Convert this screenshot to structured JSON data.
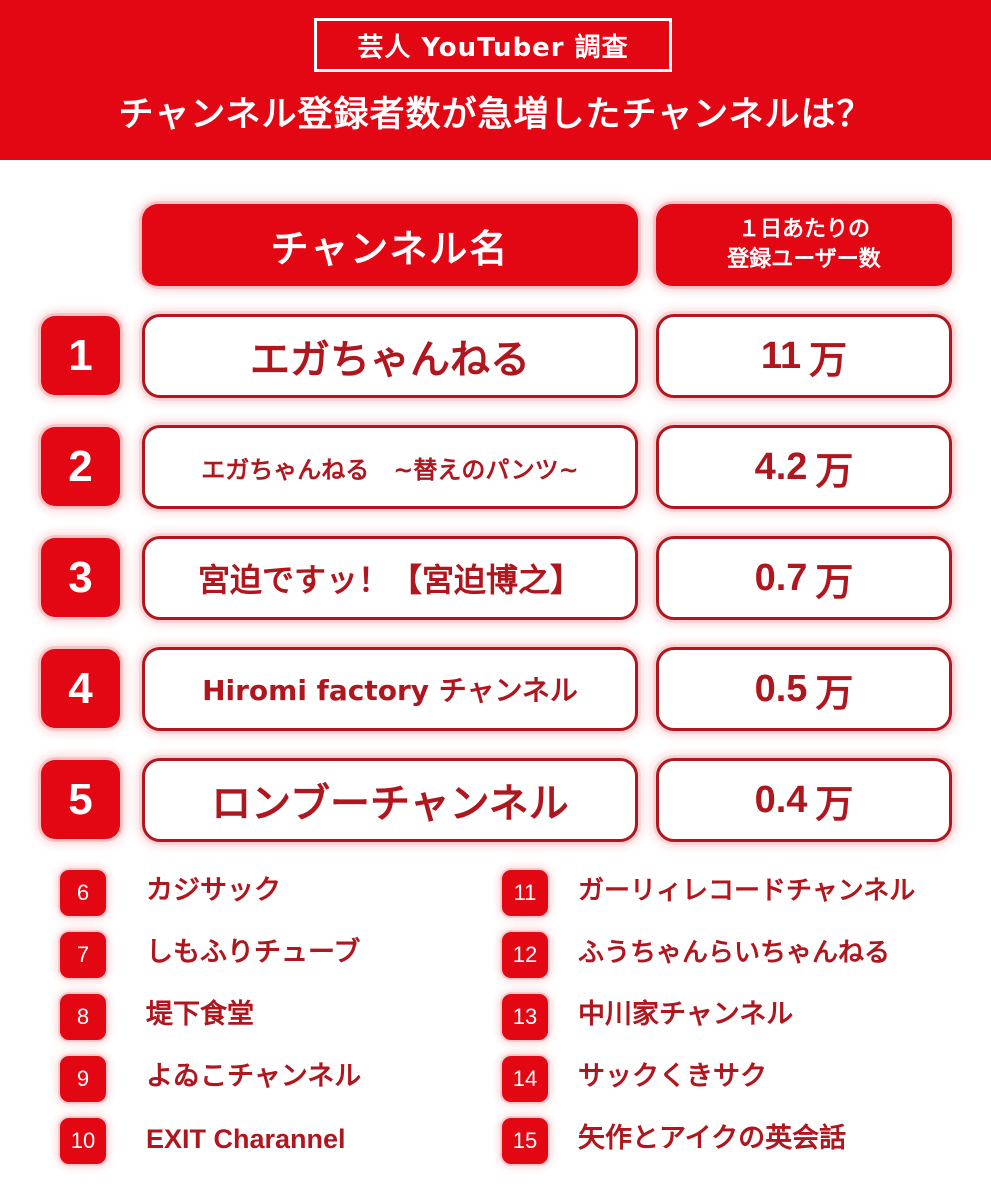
{
  "header": {
    "badge": "芸人 YouTuber 調査",
    "title": "チャンネル登録者数が急増したチャンネルは？"
  },
  "columns": {
    "name": "チャンネル名",
    "count_line1": "１日あたりの",
    "count_line2": "登録ユーザー数"
  },
  "top_ranks": [
    {
      "rank": "1",
      "name": "エガちゃんねる",
      "value": "11",
      "unit": "万"
    },
    {
      "rank": "2",
      "name": "エガちゃんねる　~替えのパンツ~",
      "value": "4.2",
      "unit": "万"
    },
    {
      "rank": "3",
      "name": "宮迫ですッ！【宮迫博之】",
      "value": "0.7",
      "unit": "万"
    },
    {
      "rank": "4",
      "name": "Hiromi factory チャンネル",
      "value": "0.5",
      "unit": "万"
    },
    {
      "rank": "5",
      "name": "ロンブーチャンネル",
      "value": "0.4",
      "unit": "万"
    }
  ],
  "other_ranks_left": [
    {
      "rank": "6",
      "name": "カジサック"
    },
    {
      "rank": "7",
      "name": "しもふりチューブ"
    },
    {
      "rank": "8",
      "name": "堤下食堂"
    },
    {
      "rank": "9",
      "name": "よゐこチャンネル"
    },
    {
      "rank": "10",
      "name": "EXIT Charannel"
    }
  ],
  "other_ranks_right": [
    {
      "rank": "11",
      "name": "ガーリィレコードチャンネル"
    },
    {
      "rank": "12",
      "name": "ふうちゃんらいちゃんねる"
    },
    {
      "rank": "13",
      "name": "中川家チャンネル"
    },
    {
      "rank": "14",
      "name": "サックくきサク"
    },
    {
      "rank": "15",
      "name": "矢作とアイクの英会話"
    }
  ],
  "colors": {
    "accent": "#e30613",
    "text_dark_red": "#b0161d",
    "background": "#ffffff"
  }
}
